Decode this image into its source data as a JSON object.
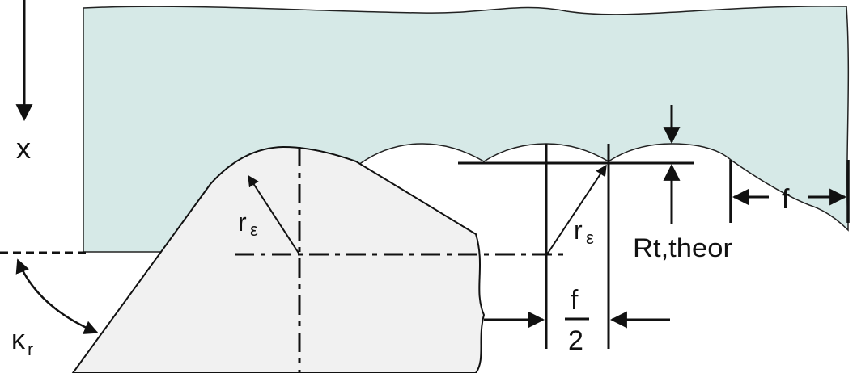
{
  "labels": {
    "x_axis": "x",
    "nose_radius_left": "r",
    "nose_radius_left_sub": "ε",
    "nose_radius_right": "r",
    "nose_radius_right_sub": "ε",
    "roughness": "Rt,theor",
    "feed": "f",
    "half_feed_num": "f",
    "half_feed_den": "2",
    "approach_angle": "κ",
    "approach_angle_sub": "r"
  },
  "colors": {
    "workpiece": "#d6e9e7",
    "tool": "#f1f1f1",
    "line": "#111111"
  }
}
